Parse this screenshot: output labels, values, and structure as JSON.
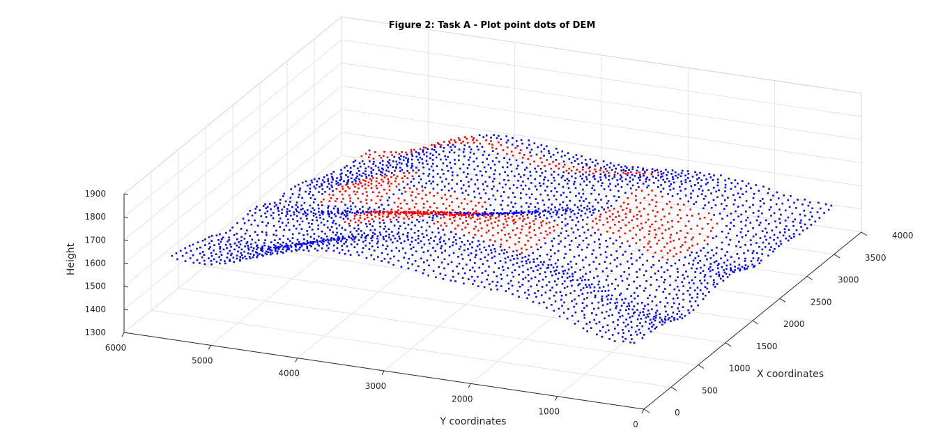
{
  "chart_data": {
    "type": "scatter3d",
    "title": "Figure 2: Task A - Plot point dots of DEM",
    "xlabel": "X coordinates",
    "ylabel": "Y coordinates",
    "zlabel": "Height",
    "xlim": [
      0,
      4000
    ],
    "ylim": [
      0,
      6000
    ],
    "zlim": [
      1300,
      1900
    ],
    "x_ticks": [
      "0",
      "500",
      "1000",
      "1500",
      "2000",
      "2500",
      "3000",
      "3500",
      "4000"
    ],
    "y_ticks": [
      "0",
      "1000",
      "2000",
      "3000",
      "4000",
      "5000",
      "6000"
    ],
    "z_ticks": [
      "1300",
      "1400",
      "1500",
      "1600",
      "1700",
      "1800",
      "1900"
    ],
    "grid": true,
    "series": [
      {
        "color": "#0000ff",
        "marker": "point"
      },
      {
        "color": "#ff0000",
        "marker": "point"
      }
    ]
  }
}
